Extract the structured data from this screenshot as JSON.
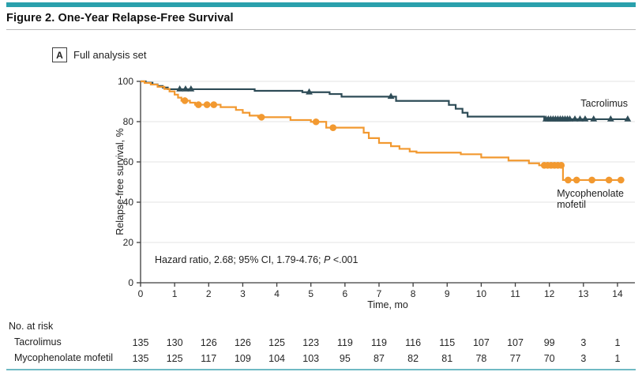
{
  "figure": {
    "title": "Figure 2. One-Year Relapse-Free Survival",
    "panel_label": "A",
    "panel_title": "Full analysis set"
  },
  "annotation": {
    "before_p": "Hazard ratio, 2.68; 95% CI, 1.79-4.76; ",
    "p_symbol": "P",
    "p_value": " <.001"
  },
  "colors": {
    "teal_bar": "#2aa0ac",
    "bottom_rule": "#6fbac4",
    "tacrolimus": "#2e4c57",
    "mycophenolate": "#f29930",
    "grid": "#e3e3e3",
    "axis": "#3c3c3c",
    "text": "#262626"
  },
  "chart_data": {
    "type": "line",
    "subtype": "kaplan-meier-step",
    "title": "One-Year Relapse-Free Survival (Full analysis set)",
    "xlabel": "Time, mo",
    "ylabel": "Relapse-free survival, %",
    "xlim": [
      0,
      14.5
    ],
    "ylim": [
      0,
      100
    ],
    "xticks": [
      0,
      1,
      2,
      3,
      4,
      5,
      6,
      7,
      8,
      9,
      10,
      11,
      12,
      13,
      14
    ],
    "yticks": [
      0,
      20,
      40,
      60,
      80,
      100
    ],
    "grid": "horizontal-light",
    "legend_position": "end-of-curve-labels",
    "hazard_note": "Hazard ratio, 2.68; 95% CI, 1.79-4.76; P <.001",
    "series": [
      {
        "name": "Tacrolimus",
        "marker": "triangle",
        "color_key": "tacrolimus",
        "steps": [
          [
            0,
            100
          ],
          [
            0.15,
            99.3
          ],
          [
            0.35,
            98.5
          ],
          [
            0.5,
            97.7
          ],
          [
            0.65,
            96.9
          ],
          [
            0.8,
            96.1
          ],
          [
            3.35,
            95.3
          ],
          [
            4.75,
            94.6
          ],
          [
            5.55,
            93.7
          ],
          [
            5.9,
            92.4
          ],
          [
            7.5,
            90.3
          ],
          [
            9.05,
            88.3
          ],
          [
            9.25,
            86.4
          ],
          [
            9.45,
            84.4
          ],
          [
            9.6,
            82.5
          ],
          [
            11.85,
            81.2
          ],
          [
            14.35,
            81.2
          ]
        ],
        "censor_times": [
          1.15,
          1.32,
          1.48,
          4.95,
          7.35,
          11.9,
          11.97,
          12.04,
          12.11,
          12.18,
          12.25,
          12.32,
          12.39,
          12.46,
          12.53,
          12.6,
          12.75,
          12.9,
          13.05,
          13.3,
          13.8,
          14.3
        ]
      },
      {
        "name": "Mycophenolate mofetil",
        "marker": "circle",
        "color_key": "mycophenolate",
        "steps": [
          [
            0,
            100
          ],
          [
            0.12,
            99.2
          ],
          [
            0.3,
            98.4
          ],
          [
            0.5,
            97.3
          ],
          [
            0.7,
            96.2
          ],
          [
            0.85,
            95.0
          ],
          [
            1.0,
            93.4
          ],
          [
            1.1,
            91.9
          ],
          [
            1.2,
            90.4
          ],
          [
            1.45,
            89.4
          ],
          [
            1.6,
            88.4
          ],
          [
            2.35,
            87.2
          ],
          [
            2.8,
            85.8
          ],
          [
            3.0,
            84.4
          ],
          [
            3.2,
            83.0
          ],
          [
            3.45,
            82.2
          ],
          [
            4.4,
            80.8
          ],
          [
            5.0,
            79.9
          ],
          [
            5.45,
            77.0
          ],
          [
            6.55,
            74.5
          ],
          [
            6.7,
            71.8
          ],
          [
            7.0,
            69.4
          ],
          [
            7.35,
            67.8
          ],
          [
            7.6,
            66.5
          ],
          [
            7.9,
            65.2
          ],
          [
            8.1,
            64.6
          ],
          [
            9.4,
            63.8
          ],
          [
            10.0,
            62.2
          ],
          [
            10.8,
            60.7
          ],
          [
            11.4,
            59.3
          ],
          [
            11.7,
            58.3
          ],
          [
            12.4,
            51.0
          ],
          [
            14.2,
            51.0
          ]
        ],
        "censor_times": [
          1.3,
          1.7,
          1.95,
          2.15,
          3.55,
          5.15,
          5.65,
          11.85,
          11.95,
          12.05,
          12.15,
          12.25,
          12.35,
          12.55,
          12.8,
          13.25,
          13.75,
          14.1
        ]
      }
    ]
  },
  "risk_table": {
    "title": "No. at risk",
    "months": [
      0,
      1,
      2,
      3,
      4,
      5,
      6,
      7,
      8,
      9,
      10,
      11,
      12,
      13,
      14
    ],
    "rows": [
      {
        "label": "Tacrolimus",
        "values": [
          135,
          130,
          126,
          126,
          125,
          123,
          119,
          119,
          116,
          115,
          107,
          107,
          99,
          3,
          1
        ]
      },
      {
        "label": "Mycophenolate mofetil",
        "values": [
          135,
          125,
          117,
          109,
          104,
          103,
          95,
          87,
          82,
          81,
          78,
          77,
          70,
          3,
          1
        ]
      }
    ]
  }
}
